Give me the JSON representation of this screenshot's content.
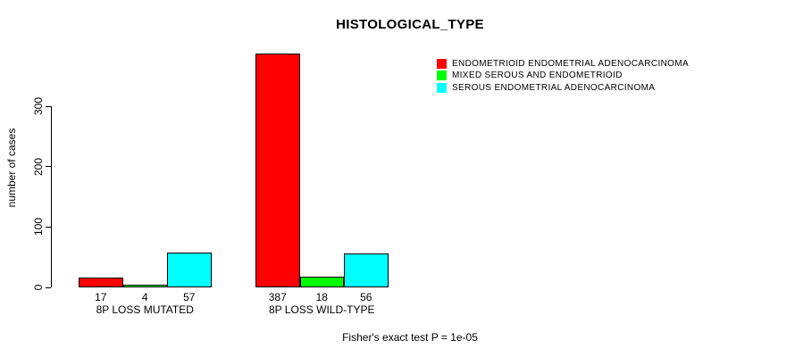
{
  "chart_data": {
    "type": "bar",
    "title": "HISTOLOGICAL_TYPE",
    "ylabel": "number of cases",
    "ylim": [
      0,
      300
    ],
    "yticks": [
      0,
      100,
      200,
      300
    ],
    "grid": false,
    "legend_position": "top-right",
    "categories": [
      "8P LOSS MUTATED",
      "8P LOSS WILD-TYPE"
    ],
    "series": [
      {
        "name": "ENDOMETRIOID ENDOMETRIAL ADENOCARCINOMA",
        "color": "#ff0000",
        "values": [
          17,
          387
        ]
      },
      {
        "name": "MIXED SEROUS AND ENDOMETRIOID",
        "color": "#00ff00",
        "values": [
          4,
          18
        ]
      },
      {
        "name": "SEROUS ENDOMETRIAL ADENOCARCINOMA",
        "color": "#00ffff",
        "values": [
          57,
          56
        ]
      }
    ],
    "bar_value_labels": [
      [
        17,
        4,
        57
      ],
      [
        387,
        18,
        56
      ]
    ],
    "footnote": "Fisher's exact test P = 1e-05"
  }
}
